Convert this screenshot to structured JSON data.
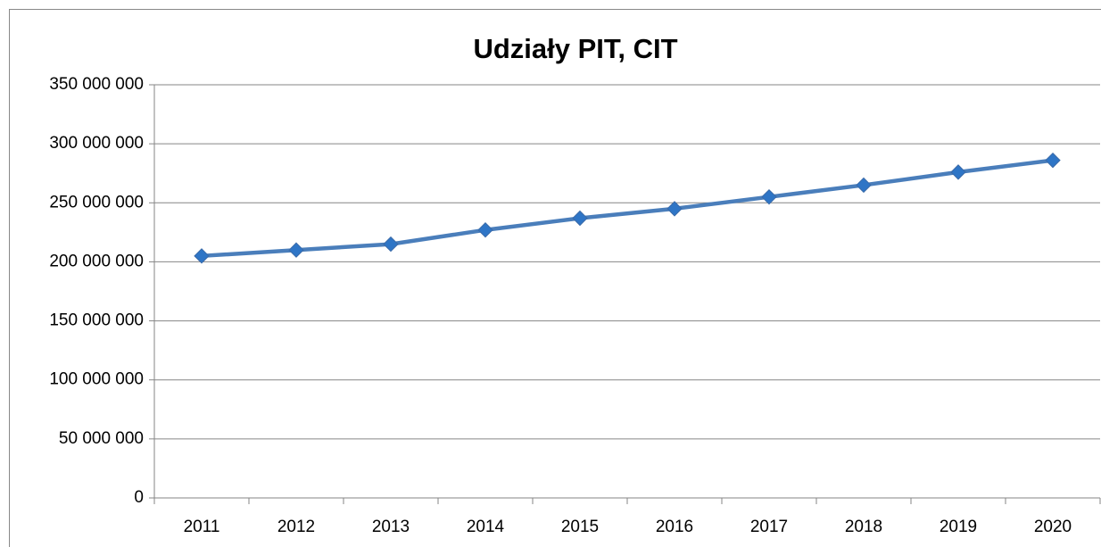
{
  "chart_data": {
    "type": "line",
    "title": "Udziały PIT, CIT",
    "categories": [
      "2011",
      "2012",
      "2013",
      "2014",
      "2015",
      "2016",
      "2017",
      "2018",
      "2019",
      "2020"
    ],
    "values": [
      205000000,
      210000000,
      215000000,
      227000000,
      237000000,
      245000000,
      255000000,
      265000000,
      276000000,
      286000000
    ],
    "color": "#4a7ebb",
    "marker_color": "#2e75c6",
    "ylim": [
      0,
      350000000
    ],
    "yticks": [
      0,
      {
        "value": 50000000,
        "label": "50 000 000"
      },
      {
        "value": 100000000,
        "label": "100 000 000"
      },
      {
        "value": 150000000,
        "label": "150 000 000"
      },
      {
        "value": 200000000,
        "label": "200 000 000"
      },
      {
        "value": 250000000,
        "label": "250 000 000"
      },
      {
        "value": 300000000,
        "label": "300 000 000"
      },
      {
        "value": 350000000,
        "label": "350 000 000"
      }
    ],
    "grid": true
  }
}
